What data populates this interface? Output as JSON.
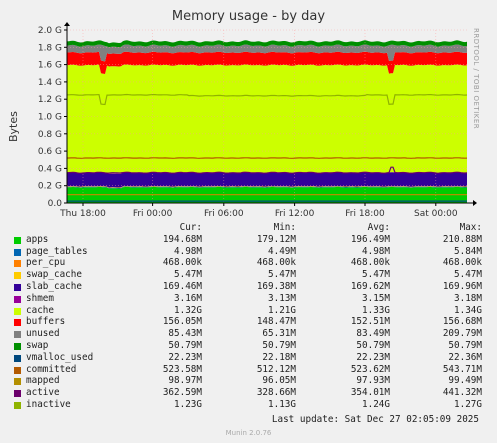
{
  "chart_data": {
    "type": "area",
    "title": "Memory usage - by day",
    "ylabel": "Bytes",
    "watermark": "RRDTOOL / TOBI OETIKER",
    "yticks": [
      "0.0",
      "0.2 G",
      "0.4 G",
      "0.6 G",
      "0.8 G",
      "1.0 G",
      "1.2 G",
      "1.4 G",
      "1.6 G",
      "1.8 G",
      "2.0 G"
    ],
    "ylim": [
      0,
      2.0
    ],
    "xticks": [
      "Thu 18:00",
      "Fri 00:00",
      "Fri 06:00",
      "Fri 12:00",
      "Fri 18:00",
      "Sat 00:00"
    ],
    "legend_header": {
      "cur": "Cur:",
      "min": "Min:",
      "avg": "Avg:",
      "max": "Max:"
    },
    "series": [
      {
        "name": "apps",
        "color": "#00cc00",
        "cur": "194.68M",
        "min": "179.12M",
        "avg": "196.49M",
        "max": "210.88M"
      },
      {
        "name": "page_tables",
        "color": "#0066b3",
        "cur": "4.98M",
        "min": "4.49M",
        "avg": "4.98M",
        "max": "5.84M"
      },
      {
        "name": "per_cpu",
        "color": "#ff8000",
        "cur": "468.00k",
        "min": "468.00k",
        "avg": "468.00k",
        "max": "468.00k"
      },
      {
        "name": "swap_cache",
        "color": "#ffcc00",
        "cur": "5.47M",
        "min": "5.47M",
        "avg": "5.47M",
        "max": "5.47M"
      },
      {
        "name": "slab_cache",
        "color": "#330099",
        "cur": "169.46M",
        "min": "169.38M",
        "avg": "169.62M",
        "max": "169.96M"
      },
      {
        "name": "shmem",
        "color": "#990099",
        "cur": "3.16M",
        "min": "3.13M",
        "avg": "3.15M",
        "max": "3.18M"
      },
      {
        "name": "cache",
        "color": "#ccff00",
        "cur": "1.32G",
        "min": "1.21G",
        "avg": "1.33G",
        "max": "1.34G"
      },
      {
        "name": "buffers",
        "color": "#ff0000",
        "cur": "156.05M",
        "min": "148.47M",
        "avg": "152.51M",
        "max": "156.68M"
      },
      {
        "name": "unused",
        "color": "#808080",
        "cur": "85.43M",
        "min": "65.31M",
        "avg": "83.49M",
        "max": "209.79M"
      },
      {
        "name": "swap",
        "color": "#008f00",
        "cur": "50.79M",
        "min": "50.79M",
        "avg": "50.79M",
        "max": "50.79M"
      },
      {
        "name": "vmalloc_used",
        "color": "#00487d",
        "cur": "22.23M",
        "min": "22.18M",
        "avg": "22.23M",
        "max": "22.36M"
      },
      {
        "name": "committed",
        "color": "#b35a00",
        "cur": "523.58M",
        "min": "512.12M",
        "avg": "523.62M",
        "max": "543.71M"
      },
      {
        "name": "mapped",
        "color": "#b38f00",
        "cur": "98.97M",
        "min": "96.05M",
        "avg": "97.93M",
        "max": "99.49M"
      },
      {
        "name": "active",
        "color": "#6b006b",
        "cur": "362.59M",
        "min": "328.66M",
        "avg": "354.01M",
        "max": "441.32M"
      },
      {
        "name": "inactive",
        "color": "#8fb300",
        "cur": "1.23G",
        "min": "1.13G",
        "avg": "1.24G",
        "max": "1.27G"
      }
    ],
    "last_update": "Last update: Sat Dec 27 02:05:09 2025",
    "footer": "Munin 2.0.76"
  }
}
